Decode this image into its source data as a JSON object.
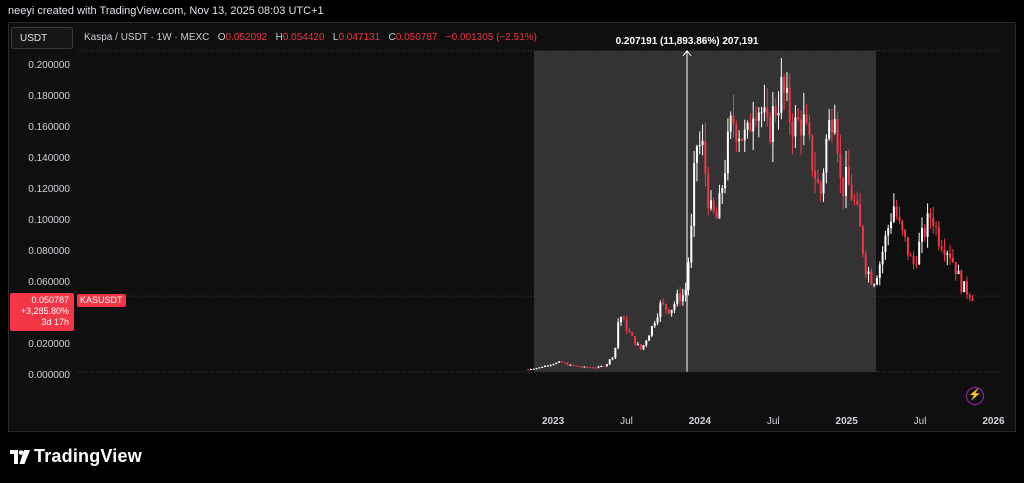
{
  "header": {
    "credit": "neeyi created with TradingView.com, Nov 13, 2025 08:03 UTC+1"
  },
  "toolbar": {
    "currency": "USDT"
  },
  "legend": {
    "title": "Kaspa / USDT · 1W · MEXC",
    "o_label": "O",
    "o_value": "0.052092",
    "h_label": "H",
    "h_value": "0.054420",
    "l_label": "L",
    "l_value": "0.047131",
    "c_label": "C",
    "c_value": "0.050787",
    "change": "−0.001305 (−2.51%)"
  },
  "price_tag": {
    "price": "0.050787",
    "change": "+3,285.80%",
    "countdown": "3d 17h",
    "symbol": "KASUSDT"
  },
  "measure": {
    "label": "0.207191 (11,893.86%) 207,191"
  },
  "footer": {
    "brand": "TradingView"
  },
  "colors": {
    "up": "#ffffff",
    "down": "#f23645",
    "measure_fill": "#3a3a3a",
    "grid_dots": "#444444"
  },
  "chart_data": {
    "type": "candlestick",
    "symbol": "KASUSDT",
    "interval": "1W",
    "y_ticks": [
      "0.200000",
      "0.180000",
      "0.160000",
      "0.140000",
      "0.120000",
      "0.100000",
      "0.080000",
      "0.060000",
      "0.020000",
      "0.000000"
    ],
    "y_tick_values": [
      0.2,
      0.18,
      0.16,
      0.14,
      0.12,
      0.1,
      0.08,
      0.06,
      0.02,
      0.0
    ],
    "ylim": [
      -0.0195,
      0.2065
    ],
    "x_ticks": [
      "2023",
      "Jul",
      "2024",
      "Jul",
      "2025",
      "Jul",
      "2026"
    ],
    "x_tick_values": [
      2023.0,
      2023.5,
      2024.0,
      2024.5,
      2025.0,
      2025.5,
      2026.0
    ],
    "xlim": [
      2019.3,
      2026.14
    ],
    "current_price": 0.050787,
    "measure_range": {
      "x_start": 2022.87,
      "x_end": 2025.2,
      "y_low": 0.002,
      "y_high": 0.2092
    },
    "anchor_points": [
      [
        2022.83,
        0.0036
      ],
      [
        2022.9,
        0.0045
      ],
      [
        2022.98,
        0.0068
      ],
      [
        2023.05,
        0.0082
      ],
      [
        2023.12,
        0.006
      ],
      [
        2023.2,
        0.005
      ],
      [
        2023.3,
        0.0047
      ],
      [
        2023.36,
        0.0063
      ],
      [
        2023.42,
        0.014
      ],
      [
        2023.45,
        0.04
      ],
      [
        2023.5,
        0.03
      ],
      [
        2023.55,
        0.022
      ],
      [
        2023.6,
        0.016
      ],
      [
        2023.67,
        0.03
      ],
      [
        2023.73,
        0.045
      ],
      [
        2023.8,
        0.042
      ],
      [
        2023.85,
        0.05
      ],
      [
        2023.9,
        0.052
      ],
      [
        2023.95,
        0.1
      ],
      [
        2023.97,
        0.15
      ],
      [
        2024.02,
        0.145
      ],
      [
        2024.07,
        0.105
      ],
      [
        2024.12,
        0.1
      ],
      [
        2024.17,
        0.135
      ],
      [
        2024.22,
        0.165
      ],
      [
        2024.26,
        0.16
      ],
      [
        2024.32,
        0.15
      ],
      [
        2024.37,
        0.18
      ],
      [
        2024.42,
        0.17
      ],
      [
        2024.46,
        0.155
      ],
      [
        2024.52,
        0.175
      ],
      [
        2024.56,
        0.185
      ],
      [
        2024.6,
        0.17
      ],
      [
        2024.65,
        0.16
      ],
      [
        2024.7,
        0.165
      ],
      [
        2024.76,
        0.14
      ],
      [
        2024.82,
        0.115
      ],
      [
        2024.86,
        0.15
      ],
      [
        2024.92,
        0.18
      ],
      [
        2024.96,
        0.12
      ],
      [
        2025.0,
        0.125
      ],
      [
        2025.04,
        0.115
      ],
      [
        2025.08,
        0.1
      ],
      [
        2025.13,
        0.07
      ],
      [
        2025.18,
        0.06
      ],
      [
        2025.22,
        0.07
      ],
      [
        2025.27,
        0.09
      ],
      [
        2025.32,
        0.11
      ],
      [
        2025.36,
        0.095
      ],
      [
        2025.4,
        0.085
      ],
      [
        2025.45,
        0.07
      ],
      [
        2025.5,
        0.085
      ],
      [
        2025.54,
        0.095
      ],
      [
        2025.58,
        0.105
      ],
      [
        2025.62,
        0.09
      ],
      [
        2025.66,
        0.085
      ],
      [
        2025.7,
        0.08
      ],
      [
        2025.74,
        0.07
      ],
      [
        2025.78,
        0.058
      ],
      [
        2025.81,
        0.055
      ],
      [
        2025.86,
        0.0508
      ]
    ]
  }
}
